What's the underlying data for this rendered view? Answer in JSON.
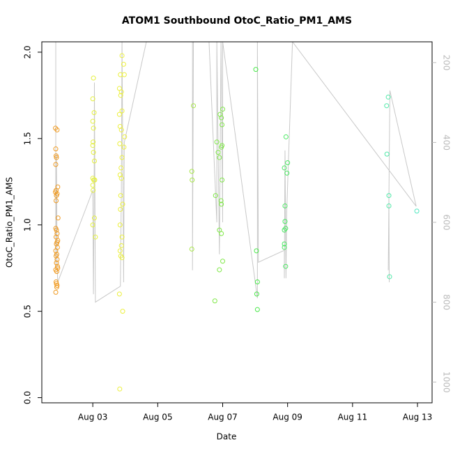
{
  "chart_data": {
    "type": "scatter",
    "title": "ATOM1 Southbound OtoC_Ratio_PM1_AMS",
    "x_label": "Date",
    "y_label": "OtoC_Ratio_PM1_AMS",
    "xlim": [
      1.43,
      13.45
    ],
    "xticks": [
      {
        "value": 3,
        "label": "Aug 03"
      },
      {
        "value": 5,
        "label": "Aug 05"
      },
      {
        "value": 7,
        "label": "Aug 07"
      },
      {
        "value": 9,
        "label": "Aug 09"
      },
      {
        "value": 11,
        "label": "Aug 11"
      },
      {
        "value": 13,
        "label": "Aug 13"
      }
    ],
    "ylim": [
      -0.03,
      2.06
    ],
    "yticks": [
      {
        "value": 0,
        "label": "0.0"
      },
      0.5,
      {
        "value": 1,
        "label": "1.0"
      },
      1.5,
      {
        "value": 2,
        "label": "2.0"
      }
    ],
    "y2lim": [
      1052,
      148
    ],
    "y2ticks": [
      200,
      400,
      600,
      800,
      1000
    ],
    "series": [
      {
        "color": "#f09a20",
        "x": [
          1.85,
          1.9,
          1.86,
          1.87,
          1.88,
          1.86,
          1.92,
          1.87,
          1.85,
          1.9,
          1.88,
          1.87,
          1.93,
          1.86,
          1.88,
          1.9,
          1.87,
          1.92,
          1.9,
          1.88,
          1.91,
          1.86,
          1.89,
          1.87,
          1.9,
          1.88,
          1.91,
          1.92,
          1.86,
          1.89,
          1.87,
          1.88,
          1.9,
          1.89,
          1.86
        ],
        "values": [
          1.56,
          1.55,
          1.44,
          1.4,
          1.39,
          1.35,
          1.22,
          1.2,
          1.19,
          1.18,
          1.17,
          1.14,
          1.04,
          0.98,
          0.97,
          0.95,
          0.93,
          0.91,
          0.9,
          0.89,
          0.87,
          0.85,
          0.83,
          0.82,
          0.8,
          0.78,
          0.76,
          0.75,
          0.74,
          0.73,
          0.67,
          0.66,
          0.65,
          0.64,
          0.61
        ]
      },
      {
        "color": "#e4f03c",
        "x": [
          3.02,
          3.0,
          3.04,
          3.0,
          3.02,
          3.01,
          3.0,
          3.02,
          3.05,
          3.0,
          3.03,
          3.06,
          3.0,
          3.01,
          3.05,
          3.0,
          3.08
        ],
        "values": [
          1.85,
          1.73,
          1.65,
          1.6,
          1.56,
          1.48,
          1.46,
          1.42,
          1.37,
          1.27,
          1.26,
          1.26,
          1.23,
          1.2,
          1.04,
          1.0,
          0.93
        ]
      },
      {
        "color": "#ecf03c",
        "x": [
          3.9,
          3.95,
          3.85,
          3.97,
          3.82,
          3.88,
          3.86,
          3.9,
          3.82,
          3.84,
          3.88,
          3.98,
          3.83,
          3.96,
          3.9,
          3.87,
          3.84,
          3.88,
          3.86,
          3.92,
          3.85,
          3.84,
          3.9,
          3.88,
          3.84,
          3.86,
          3.9,
          3.82,
          3.92,
          3.83
        ],
        "values": [
          1.98,
          1.93,
          1.87,
          1.87,
          1.79,
          1.77,
          1.75,
          1.66,
          1.64,
          1.57,
          1.55,
          1.51,
          1.47,
          1.45,
          1.39,
          1.33,
          1.29,
          1.27,
          1.17,
          1.12,
          1.09,
          1.0,
          0.93,
          0.88,
          0.85,
          0.82,
          0.81,
          0.6,
          0.5,
          0.05
        ]
      },
      {
        "color": "#a8e848",
        "x": [
          6.1,
          6.05,
          6.06,
          6.05
        ],
        "values": [
          1.69,
          1.31,
          1.26,
          0.86
        ]
      },
      {
        "color": "#80e848",
        "x": [
          7.0,
          6.92,
          6.96,
          6.98,
          6.82,
          6.98,
          6.96,
          6.86,
          6.9,
          6.98,
          6.78,
          6.95,
          6.96,
          6.9,
          6.96,
          7.0,
          6.9,
          6.76
        ],
        "values": [
          1.67,
          1.64,
          1.62,
          1.58,
          1.48,
          1.46,
          1.45,
          1.42,
          1.39,
          1.26,
          1.17,
          1.14,
          1.12,
          0.97,
          0.95,
          0.79,
          0.74,
          0.56
        ]
      },
      {
        "color": "#48e848",
        "x": [
          8.02,
          8.04,
          8.07,
          8.05,
          8.07
        ],
        "values": [
          1.9,
          0.85,
          0.67,
          0.6,
          0.51
        ]
      },
      {
        "color": "#48e860",
        "x": [
          8.95,
          9.0,
          8.9,
          8.98,
          8.92,
          8.92,
          8.94,
          8.9,
          8.9,
          8.9,
          8.94
        ],
        "values": [
          1.51,
          1.36,
          1.33,
          1.3,
          1.11,
          1.02,
          0.98,
          0.97,
          0.89,
          0.87,
          0.76
        ]
      },
      {
        "color": "#50e8a8",
        "x": [
          12.1,
          12.05,
          12.06,
          12.12,
          12.12,
          12.14
        ],
        "values": [
          1.74,
          1.69,
          1.41,
          1.17,
          1.11,
          0.7
        ]
      },
      {
        "color": "#50e8c0",
        "x": [
          12.98
        ],
        "values": [
          1.08
        ]
      },
      {
        "color": "#c8c8c8",
        "axis": "y2",
        "type": "line",
        "x": [
          1.86,
          1.86,
          1.88,
          1.9,
          1.92,
          3.0,
          3.02,
          3.04,
          3.05,
          3.08,
          3.85,
          3.88,
          3.9,
          3.95,
          3.97,
          4.65,
          null,
          6.07,
          6.07,
          6.1,
          6.58,
          6.82,
          6.82,
          6.9,
          6.95,
          7.0,
          7.0,
          8.07,
          8.07,
          8.1,
          8.9,
          8.9,
          8.92,
          8.95,
          8.97,
          9.15,
          12.96,
          12.15,
          12.1,
          12.12,
          12.13
        ],
        "values": [
          148,
          720,
          430,
          700,
          750,
          520,
          780,
          560,
          250,
          800,
          760,
          520,
          148,
          750,
          400,
          148,
          null,
          148,
          720,
          148,
          148,
          600,
          148,
          680,
          148,
          600,
          148,
          790,
          148,
          700,
          670,
          740,
          420,
          740,
          580,
          148,
          560,
          270,
          720,
          540,
          750
        ]
      }
    ]
  }
}
